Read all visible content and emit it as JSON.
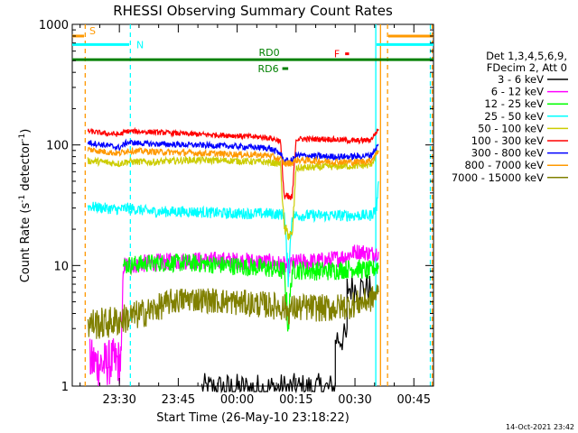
{
  "chart_data": {
    "type": "line",
    "title": "RHESSI Observing Summary Count Rates",
    "xlabel": "Start Time (26-May-10 23:18:22)",
    "ylabel_main": "Count Rate (s",
    "ylabel_sup1": "-1",
    "ylabel_mid": " detector",
    "ylabel_sup2": "-1",
    "ylabel_end": ")",
    "yscale": "log",
    "ylim": [
      1,
      1000
    ],
    "xlim_minutes": [
      0,
      92
    ],
    "xticks": [
      {
        "t": 12,
        "label": "23:30"
      },
      {
        "t": 27,
        "label": "23:45"
      },
      {
        "t": 42,
        "label": "00:00"
      },
      {
        "t": 57,
        "label": "00:15"
      },
      {
        "t": 72,
        "label": "00:30"
      },
      {
        "t": 87,
        "label": "00:45"
      }
    ],
    "yticks": [
      {
        "v": 1,
        "label": "1"
      },
      {
        "v": 10,
        "label": "10"
      },
      {
        "v": 100,
        "label": "100"
      },
      {
        "v": 1000,
        "label": "1000"
      }
    ],
    "legend_header": [
      "Det 1,3,4,5,6,9,",
      "FDecim 2, Att 0"
    ],
    "series": [
      {
        "name": "3 - 6 keV",
        "color": "#000000",
        "kind": "low",
        "segments": [
          {
            "t": [
              33,
              67
            ],
            "v": 0.95
          },
          {
            "t": [
              67,
              70
            ],
            "v": 2.5
          },
          {
            "t": [
              70,
              76
            ],
            "v": 6.5
          }
        ]
      },
      {
        "name": "6 - 12 keV",
        "color": "#ff00ff",
        "points": [
          [
            4.5,
            1.6
          ],
          [
            8,
            1.5
          ],
          [
            10,
            1.6
          ],
          [
            12.5,
            1.6
          ],
          [
            13,
            10
          ],
          [
            20,
            10.5
          ],
          [
            30,
            11
          ],
          [
            40,
            11
          ],
          [
            50,
            10.6
          ],
          [
            54,
            10
          ],
          [
            55,
            9.5
          ],
          [
            56,
            10.5
          ],
          [
            65,
            11
          ],
          [
            70,
            12
          ],
          [
            72,
            13
          ],
          [
            74,
            13
          ],
          [
            76,
            12.5
          ],
          [
            78,
            13
          ]
        ]
      },
      {
        "name": "12 - 25 keV",
        "color": "#00ff00",
        "points": [
          [
            13,
            10
          ],
          [
            20,
            10.5
          ],
          [
            30,
            10.5
          ],
          [
            40,
            10
          ],
          [
            50,
            9.5
          ],
          [
            54,
            9
          ],
          [
            55,
            3.2
          ],
          [
            56,
            9.2
          ],
          [
            65,
            9
          ],
          [
            72,
            9.5
          ],
          [
            76,
            9
          ],
          [
            78,
            10
          ]
        ]
      },
      {
        "name": "25 - 50 keV",
        "color": "#00ffff",
        "points": [
          [
            4,
            31
          ],
          [
            8,
            30
          ],
          [
            12,
            29
          ],
          [
            14,
            30
          ],
          [
            20,
            28
          ],
          [
            30,
            28
          ],
          [
            40,
            27
          ],
          [
            50,
            27
          ],
          [
            54,
            26.5
          ],
          [
            55,
            8
          ],
          [
            56,
            26
          ],
          [
            65,
            26
          ],
          [
            72,
            26
          ],
          [
            76,
            26
          ],
          [
            77.5,
            30
          ],
          [
            78,
            50
          ]
        ]
      },
      {
        "name": "50 - 100 keV",
        "color": "#cccc00",
        "points": [
          [
            4,
            74
          ],
          [
            8,
            72
          ],
          [
            12,
            70
          ],
          [
            14,
            73
          ],
          [
            20,
            72
          ],
          [
            30,
            75
          ],
          [
            40,
            74
          ],
          [
            50,
            72
          ],
          [
            53,
            70
          ],
          [
            54,
            20
          ],
          [
            56,
            17
          ],
          [
            57,
            64
          ],
          [
            65,
            66
          ],
          [
            72,
            67
          ],
          [
            76,
            68
          ],
          [
            78,
            90
          ]
        ]
      },
      {
        "name": "100 - 300 keV",
        "color": "#ff0000",
        "points": [
          [
            4,
            130
          ],
          [
            8,
            125
          ],
          [
            12,
            122
          ],
          [
            14,
            130
          ],
          [
            20,
            128
          ],
          [
            30,
            123
          ],
          [
            40,
            120
          ],
          [
            50,
            115
          ],
          [
            53,
            108
          ],
          [
            54,
            37
          ],
          [
            56,
            36
          ],
          [
            57,
            112
          ],
          [
            65,
            112
          ],
          [
            72,
            108
          ],
          [
            76,
            110
          ],
          [
            78,
            135
          ]
        ]
      },
      {
        "name": "300 - 800 keV",
        "color": "#0000ff",
        "points": [
          [
            4,
            105
          ],
          [
            8,
            100
          ],
          [
            12,
            95
          ],
          [
            14,
            105
          ],
          [
            20,
            102
          ],
          [
            30,
            100
          ],
          [
            40,
            98
          ],
          [
            50,
            94
          ],
          [
            53,
            85
          ],
          [
            54,
            73
          ],
          [
            56,
            74
          ],
          [
            57,
            82
          ],
          [
            65,
            80
          ],
          [
            72,
            80
          ],
          [
            76,
            82
          ],
          [
            78,
            100
          ]
        ]
      },
      {
        "name": "800 - 7000 keV",
        "color": "#ff9900",
        "points": [
          [
            4,
            92
          ],
          [
            8,
            88
          ],
          [
            12,
            85
          ],
          [
            14,
            90
          ],
          [
            20,
            88
          ],
          [
            30,
            86
          ],
          [
            40,
            84
          ],
          [
            50,
            82
          ],
          [
            53,
            76
          ],
          [
            54,
            70
          ],
          [
            56,
            71
          ],
          [
            57,
            75
          ],
          [
            65,
            73
          ],
          [
            72,
            72
          ],
          [
            76,
            74
          ],
          [
            78,
            90
          ]
        ]
      },
      {
        "name": "7000 - 15000 keV",
        "color": "#808000",
        "points": [
          [
            4,
            3.3
          ],
          [
            8,
            3.3
          ],
          [
            12,
            3.5
          ],
          [
            13,
            3.6
          ],
          [
            20,
            4.2
          ],
          [
            25,
            5
          ],
          [
            30,
            5.3
          ],
          [
            40,
            5
          ],
          [
            50,
            4.7
          ],
          [
            54,
            4.5
          ],
          [
            55,
            4.2
          ],
          [
            56,
            4.4
          ],
          [
            60,
            4.5
          ],
          [
            65,
            4.4
          ],
          [
            70,
            4.6
          ],
          [
            74,
            5
          ],
          [
            76,
            5.2
          ],
          [
            78,
            6
          ]
        ]
      }
    ],
    "bands": [
      {
        "label": "S",
        "color": "#ff9900",
        "t": [
          0,
          3
        ],
        "v": 800
      },
      {
        "label": "",
        "color": "#ff9900",
        "t": [
          80.5,
          92
        ],
        "v": 800
      },
      {
        "label": "N",
        "color": "#00ffff",
        "t": [
          0,
          14.5
        ],
        "v": 680
      },
      {
        "label": "",
        "color": "#00ffff",
        "t": [
          77.5,
          92
        ],
        "v": 680
      },
      {
        "label": "RD0",
        "color": "#008000",
        "t": [
          0,
          92
        ],
        "v": 510
      },
      {
        "label": "RD6",
        "color": "#008000",
        "t": [
          53.5,
          55
        ],
        "v": 430
      },
      {
        "label": "F",
        "color": "#ff0000",
        "t": [
          69.5,
          70.5
        ],
        "v": 570
      }
    ],
    "vlines": [
      {
        "t": 3.3,
        "color": "#ff9900",
        "style": "dash"
      },
      {
        "t": 14.8,
        "color": "#00ffff",
        "style": "dash"
      },
      {
        "t": 77.3,
        "color": "#00ffff",
        "style": "solid"
      },
      {
        "t": 78.5,
        "color": "#ff9900",
        "style": "solid"
      },
      {
        "t": 80.3,
        "color": "#ff9900",
        "style": "dash"
      },
      {
        "t": 91.2,
        "color": "#00ffff",
        "style": "dash"
      },
      {
        "t": 91.7,
        "color": "#ff9900",
        "style": "dash"
      }
    ]
  },
  "timestamp": "14-Oct-2021 23:42"
}
